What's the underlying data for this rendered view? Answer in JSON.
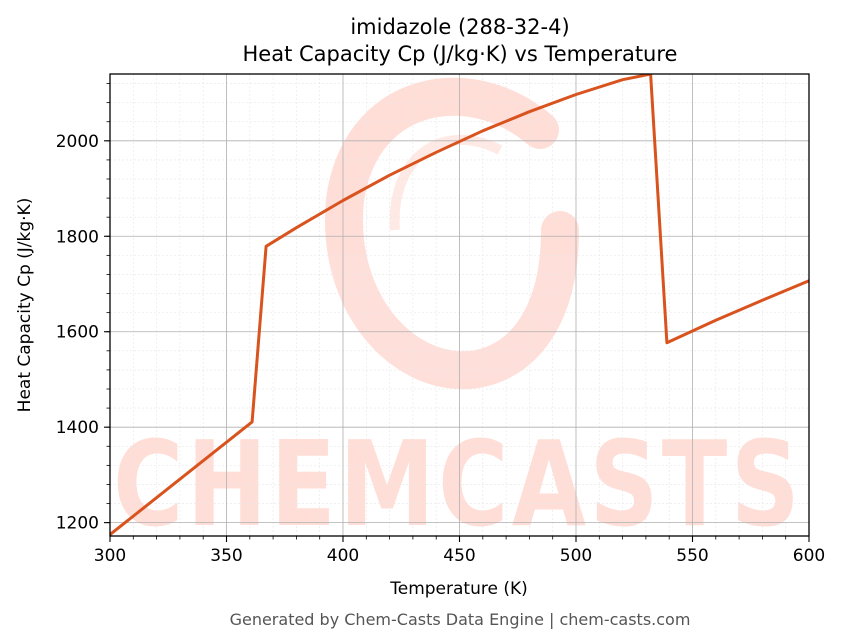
{
  "chart_data": {
    "type": "line",
    "title_line1": "imidazole (288-32-4)",
    "title_line2": "Heat Capacity Cp (J/kg·K) vs Temperature",
    "xlabel": "Temperature (K)",
    "ylabel": "Heat Capacity Cp (J/kg·K)",
    "xlim": [
      300,
      600
    ],
    "ylim": [
      1172,
      2140
    ],
    "x_ticks": [
      300,
      350,
      400,
      450,
      500,
      550,
      600
    ],
    "y_ticks": [
      1200,
      1400,
      1600,
      1800,
      2000
    ],
    "grid": true,
    "series": [
      {
        "color": "#d9531e",
        "x": [
          300,
          361,
          367,
          380,
          400,
          420,
          440,
          460,
          480,
          500,
          520,
          532,
          539,
          560,
          580,
          600
        ],
        "y": [
          1175,
          1411,
          1779,
          1818,
          1875,
          1928,
          1976,
          2021,
          2061,
          2097,
          2128,
          2140,
          1577,
          1624,
          1666,
          1707
        ]
      }
    ]
  },
  "footer": "Generated by Chem-Casts Data Engine | chem-casts.com",
  "watermark": {
    "text": "CHEMCASTS",
    "color": "#ffd9d2"
  }
}
